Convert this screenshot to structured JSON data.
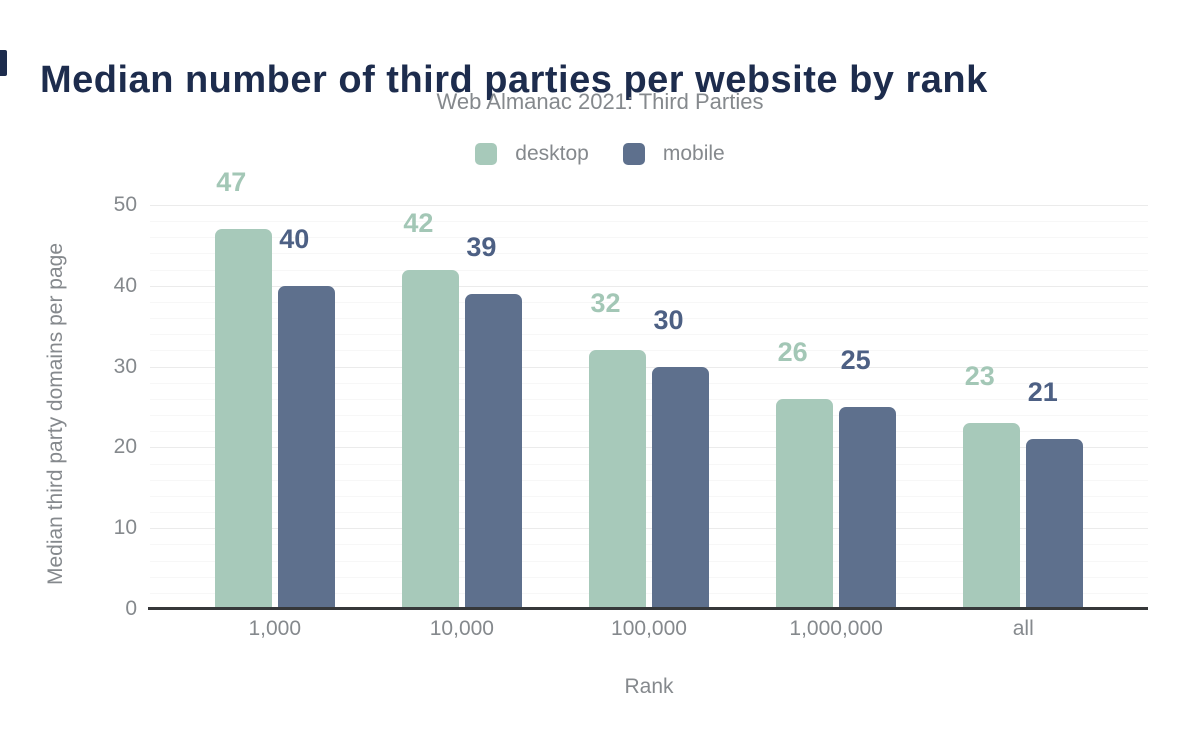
{
  "header": {
    "title": "Median number of third parties per website by rank",
    "subtitle": "Web Almanac 2021: Third Parties"
  },
  "chart_data": {
    "type": "bar",
    "title": "Median number of third parties per website by rank",
    "subtitle": "Web Almanac 2021: Third Parties",
    "categories": [
      "1,000",
      "10,000",
      "100,000",
      "1,000,000",
      "all"
    ],
    "series": [
      {
        "name": "desktop",
        "color": "#a7c9ba",
        "label_color": "#a3c7b6",
        "values": [
          47,
          42,
          32,
          26,
          23
        ]
      },
      {
        "name": "mobile",
        "color": "#5e708d",
        "label_color": "#4d6084",
        "values": [
          40,
          39,
          30,
          25,
          21
        ]
      }
    ],
    "xlabel": "Rank",
    "ylabel": "Median third party domains per page",
    "ylim": [
      0,
      50
    ],
    "yticks": [
      0,
      10,
      20,
      30,
      40,
      50
    ],
    "minor_tick_step": 2,
    "grid": "horizontal, major every 10 with minor every 2",
    "legend_position": "top-center",
    "data_labels": "above bars, colored per series"
  },
  "colors": {
    "title": "#1d2c4d",
    "gray_text": "#85898d",
    "grid_major": "#ebebeb",
    "grid_minor": "#f7f7f7",
    "axis_line": "#36383a",
    "background": "#ffffff"
  }
}
